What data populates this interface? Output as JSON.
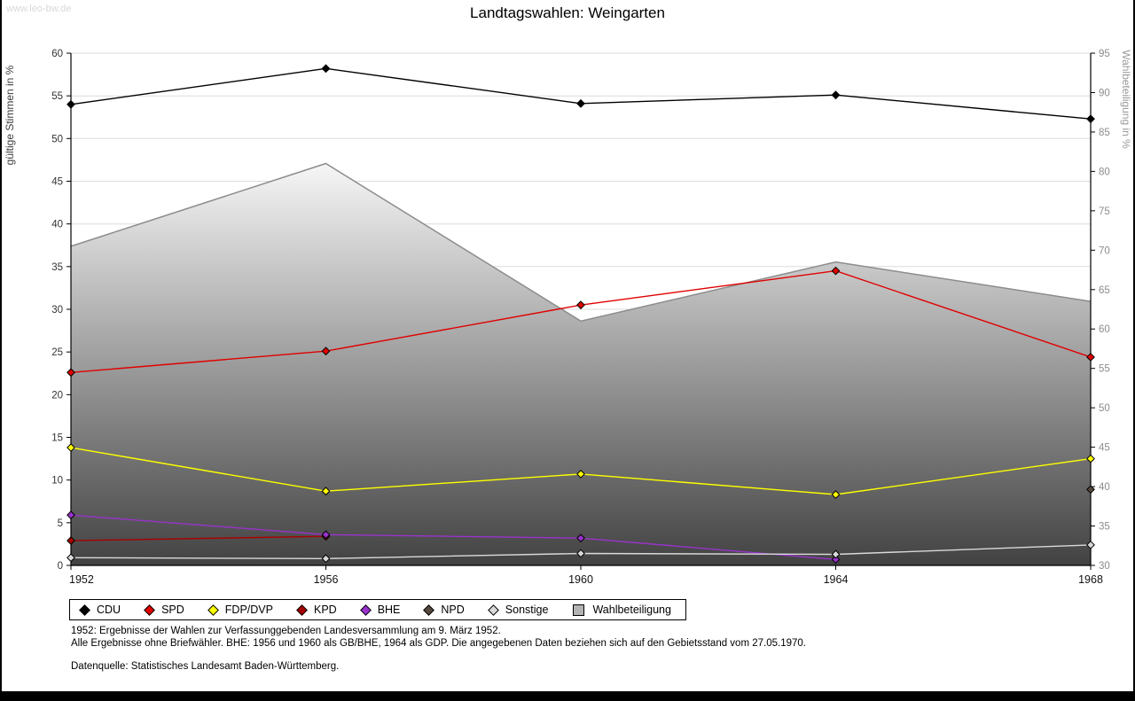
{
  "watermark": "www.leo-bw.de",
  "title": "Landtagswahlen: Weingarten",
  "chart_data": {
    "type": "line",
    "x": [
      1952,
      1956,
      1960,
      1964,
      1968
    ],
    "left_axis": {
      "label": "gültige Stimmen in %",
      "min": 0,
      "max": 60,
      "step": 5
    },
    "right_axis": {
      "label": "Wahlbeteiligung in %",
      "min": 30,
      "max": 95,
      "step": 5
    },
    "grid": true,
    "legend_position": "bottom",
    "series": [
      {
        "name": "CDU",
        "color": "#000000",
        "points": [
          [
            1952,
            54.0
          ],
          [
            1956,
            58.2
          ],
          [
            1960,
            54.1
          ],
          [
            1964,
            55.1
          ],
          [
            1968,
            52.3
          ]
        ]
      },
      {
        "name": "SPD",
        "color": "#e10000",
        "points": [
          [
            1952,
            22.6
          ],
          [
            1956,
            25.1
          ],
          [
            1960,
            30.5
          ],
          [
            1964,
            34.5
          ],
          [
            1968,
            24.4
          ]
        ]
      },
      {
        "name": "FDP/DVP",
        "color": "#ffff00",
        "points": [
          [
            1952,
            13.8
          ],
          [
            1956,
            8.7
          ],
          [
            1960,
            10.7
          ],
          [
            1964,
            8.3
          ],
          [
            1968,
            12.5
          ]
        ]
      },
      {
        "name": "KPD",
        "color": "#a80000",
        "points": [
          [
            1952,
            2.9
          ],
          [
            1956,
            3.4
          ]
        ]
      },
      {
        "name": "BHE",
        "color": "#9933cc",
        "points": [
          [
            1952,
            5.9
          ],
          [
            1956,
            3.6
          ],
          [
            1960,
            3.2
          ],
          [
            1964,
            0.7
          ]
        ]
      },
      {
        "name": "NPD",
        "color": "#55493e",
        "points": [
          [
            1968,
            8.9
          ]
        ]
      },
      {
        "name": "Sonstige",
        "color": "#d9d9d9",
        "points": [
          [
            1952,
            0.9
          ],
          [
            1956,
            0.8
          ],
          [
            1960,
            1.4
          ],
          [
            1964,
            1.3
          ],
          [
            1968,
            2.4
          ]
        ]
      }
    ],
    "area_series": {
      "name": "Wahlbeteiligung",
      "axis": "right",
      "points": [
        [
          1952,
          70.5
        ],
        [
          1956,
          81.0
        ],
        [
          1960,
          61.0
        ],
        [
          1964,
          68.5
        ],
        [
          1968,
          63.5
        ]
      ],
      "fill_top": "#f6f6f6",
      "fill_bottom": "#424242",
      "stroke": "#8c8c8c",
      "legend_color": "#b3b3b3"
    }
  },
  "footnotes": {
    "line1": "1952: Ergebnisse der Wahlen zur Verfassunggebenden Landesversammlung am 9. März 1952.",
    "line2": "Alle Ergebnisse ohne Briefwähler. BHE: 1956 und 1960 als GB/BHE, 1964 als GDP. Die angegebenen Daten beziehen sich auf den Gebietsstand vom 27.05.1970.",
    "source": "Datenquelle: Statistisches Landesamt Baden-Württemberg."
  }
}
